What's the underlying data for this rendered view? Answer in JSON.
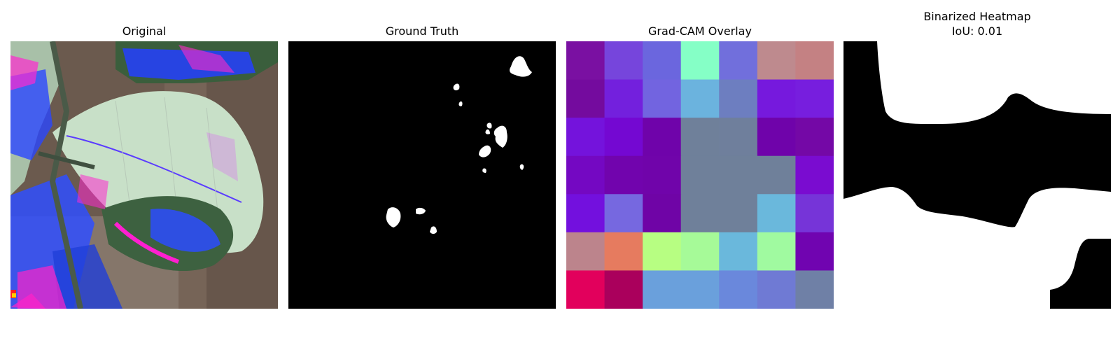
{
  "panels": [
    {
      "title": "Original"
    },
    {
      "title": "Ground Truth"
    },
    {
      "title": "Grad-CAM Overlay"
    },
    {
      "title": "Binarized Heatmap\nIoU: 0.01"
    }
  ],
  "gradcam_grid": {
    "rows": 7,
    "cols": 7,
    "cells": [
      [
        "#7a10a2",
        "#7645dc",
        "#6b66de",
        "#85ffc6",
        "#716fdc",
        "#be8a8e",
        "#c48183"
      ],
      [
        "#740b9e",
        "#7320dd",
        "#7264e0",
        "#6bb3de",
        "#6d7ec0",
        "#7619dd",
        "#771ede"
      ],
      [
        "#7413dc",
        "#7408d2",
        "#6f03aa",
        "#6f809a",
        "#6f7f9c",
        "#6f03aa",
        "#7408a6"
      ],
      [
        "#7408c2",
        "#7104ad",
        "#7004aa",
        "#6f809a",
        "#6f809a",
        "#6f809a",
        "#7a0cd0"
      ],
      [
        "#7310de",
        "#7668e0",
        "#6f04a6",
        "#6f809a",
        "#6f809a",
        "#6ab8dc",
        "#7634d8"
      ],
      [
        "#bc848c",
        "#e67b5f",
        "#b7fe82",
        "#a6fa98",
        "#6ab8dc",
        "#a0faa0",
        "#7004b0"
      ],
      [
        "#e2005c",
        "#aa005c",
        "#6aa0dc",
        "#6aa0dc",
        "#6a88dc",
        "#6f7ad4",
        "#6f80a6"
      ]
    ]
  },
  "colors": {
    "mask_background": "#000000",
    "mask_foreground": "#ffffff",
    "heatmap_background": "#ffffff",
    "heatmap_region": "#000000"
  }
}
